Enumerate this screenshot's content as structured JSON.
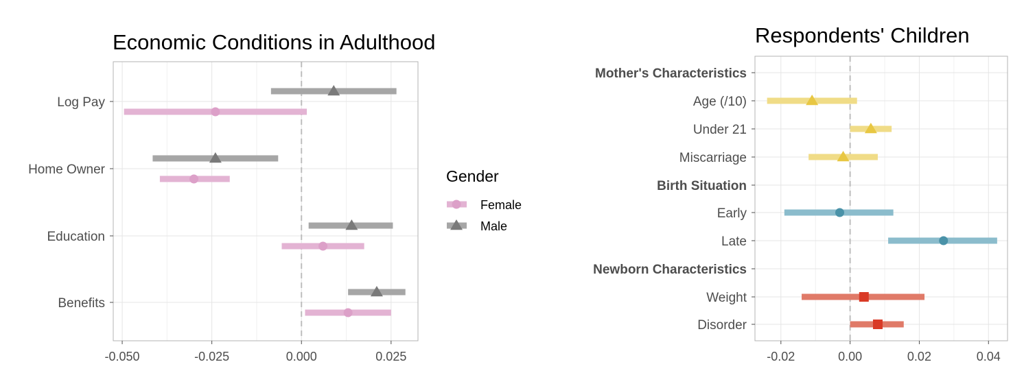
{
  "colors": {
    "female": "#e3b3d3",
    "female_point": "#dca0c8",
    "male": "#a6a6a6",
    "male_point": "#7a7a7a",
    "mother": "#f0dc87",
    "mother_point": "#e8c743",
    "birth": "#8bbccc",
    "birth_point": "#4a92a8",
    "newborn": "#e07a68",
    "newborn_point": "#d93a26"
  },
  "chart_data": [
    {
      "type": "dot-interval",
      "title": "Economic Conditions in Adulthood",
      "xlabel": "",
      "ylabel": "",
      "xlim": [
        -0.0525,
        0.0325
      ],
      "xticks": [
        -0.05,
        -0.025,
        0.0,
        0.025
      ],
      "xtick_labels": [
        "-0.050",
        "-0.025",
        "0.000",
        "0.025"
      ],
      "reference_line": 0,
      "grid": true,
      "categories": [
        "Log Pay",
        "Home Owner",
        "Education",
        "Benefits"
      ],
      "series": [
        {
          "name": "Female",
          "marker": "circle",
          "estimates": [
            -0.024,
            -0.03,
            0.006,
            0.013
          ],
          "lower": [
            -0.0495,
            -0.0395,
            -0.0055,
            0.001
          ],
          "upper": [
            0.0015,
            -0.02,
            0.0175,
            0.025
          ]
        },
        {
          "name": "Male",
          "marker": "triangle",
          "estimates": [
            0.009,
            -0.024,
            0.014,
            0.021
          ],
          "lower": [
            -0.0085,
            -0.0415,
            0.002,
            0.013
          ],
          "upper": [
            0.0265,
            -0.0065,
            0.0255,
            0.029
          ]
        }
      ],
      "legend": {
        "title": "Gender",
        "position": "right",
        "entries": [
          "Female",
          "Male"
        ]
      }
    },
    {
      "type": "dot-interval",
      "title": "Respondents' Children",
      "xlabel": "",
      "ylabel": "",
      "xlim": [
        -0.0275,
        0.0455
      ],
      "xticks": [
        -0.02,
        0.0,
        0.02,
        0.04
      ],
      "xtick_labels": [
        "-0.02",
        "0.00",
        "0.02",
        "0.04"
      ],
      "reference_line": 0,
      "grid": true,
      "rows": [
        {
          "label": "Mother's Characteristics",
          "header": true
        },
        {
          "label": "Age (/10)",
          "group": "mother",
          "marker": "triangle",
          "estimate": -0.011,
          "lower": -0.024,
          "upper": 0.002
        },
        {
          "label": "Under 21",
          "group": "mother",
          "marker": "triangle",
          "estimate": 0.006,
          "lower": 0.0,
          "upper": 0.012
        },
        {
          "label": "Miscarriage",
          "group": "mother",
          "marker": "triangle",
          "estimate": -0.002,
          "lower": -0.012,
          "upper": 0.008
        },
        {
          "label": "Birth Situation",
          "header": true
        },
        {
          "label": "Early",
          "group": "birth",
          "marker": "circle",
          "estimate": -0.003,
          "lower": -0.019,
          "upper": 0.0125
        },
        {
          "label": "Late",
          "group": "birth",
          "marker": "circle",
          "estimate": 0.027,
          "lower": 0.011,
          "upper": 0.0425
        },
        {
          "label": "Newborn Characteristics",
          "header": true
        },
        {
          "label": "Weight",
          "group": "newborn",
          "marker": "square",
          "estimate": 0.004,
          "lower": -0.014,
          "upper": 0.0215
        },
        {
          "label": "Disorder",
          "group": "newborn",
          "marker": "square",
          "estimate": 0.008,
          "lower": 0.0,
          "upper": 0.0155
        }
      ]
    }
  ]
}
